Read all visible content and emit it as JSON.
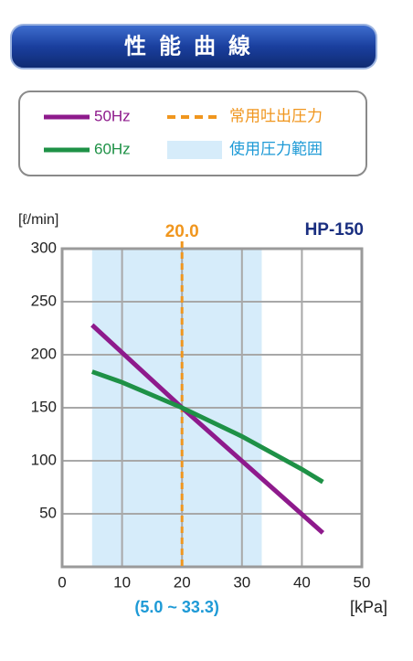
{
  "header": {
    "title": "性能曲線"
  },
  "chart_data": {
    "type": "line",
    "model": "HP-150",
    "y_label": "[ℓ/min]",
    "x_label": "[kPa]",
    "xlim": [
      0,
      50
    ],
    "xticks": [
      0,
      10,
      20,
      30,
      40,
      50
    ],
    "ylim": [
      0,
      300
    ],
    "yticks": [
      50,
      100,
      150,
      200,
      250,
      300
    ],
    "grid": true,
    "series": [
      {
        "name": "50Hz",
        "color": "#8e1a8c",
        "x": [
          5,
          20,
          43.5
        ],
        "values": [
          228,
          150,
          32
        ]
      },
      {
        "name": "60Hz",
        "color": "#1e9146",
        "x": [
          5,
          10,
          20,
          30,
          40,
          43.5
        ],
        "values": [
          184,
          174,
          150,
          123,
          92,
          80
        ]
      }
    ],
    "rated_pressure": {
      "name": "常用吐出圧力",
      "value": 20,
      "label": "20.0",
      "color": "#f0961e"
    },
    "range": {
      "name": "使用圧力範囲",
      "from": 5.0,
      "to": 33.3,
      "label": "(5.0 ~ 33.3)",
      "color": "#d6ecfa"
    }
  }
}
